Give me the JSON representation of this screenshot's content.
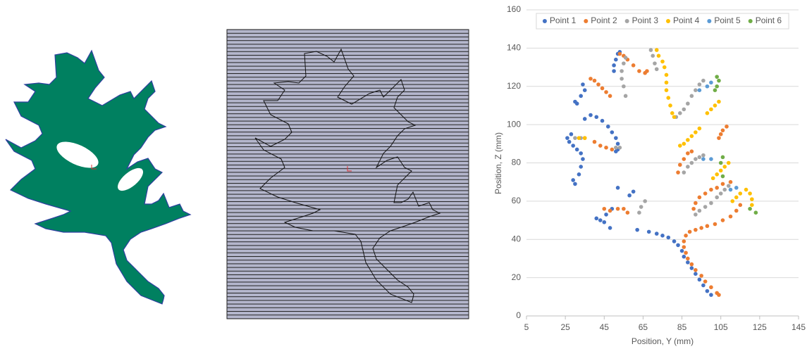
{
  "chart_data": {
    "type": "scatter",
    "xlabel": "Position, Y (mm)",
    "ylabel": "Position, Z (mm)",
    "xlim": [
      5,
      145
    ],
    "ylim": [
      0,
      160
    ],
    "xticks": [
      5,
      25,
      45,
      65,
      85,
      105,
      125,
      145
    ],
    "yticks": [
      0,
      20,
      40,
      60,
      80,
      100,
      120,
      140,
      160
    ],
    "grid": true,
    "legend": "top",
    "series": [
      {
        "name": "Point 1",
        "color": "#4472c4",
        "x": [
          100,
          98,
          96,
          94,
          92,
          90,
          88,
          86,
          85,
          83,
          81,
          78,
          75,
          72,
          68,
          62,
          48,
          45,
          43,
          41,
          46,
          49,
          52,
          58,
          60,
          30,
          29,
          32,
          33,
          34,
          33,
          31,
          29,
          27,
          26,
          28,
          35,
          38,
          41,
          44,
          47,
          49,
          51,
          52,
          52,
          51,
          30,
          31,
          33,
          35,
          34,
          50,
          50,
          51,
          52,
          53
        ],
        "values": [
          11,
          13,
          16,
          19,
          22,
          25,
          28,
          31,
          34,
          37,
          39,
          41,
          42,
          43,
          44,
          45,
          46,
          49,
          50,
          51,
          53,
          56,
          67,
          63,
          65,
          69,
          71,
          74,
          78,
          82,
          85,
          87,
          89,
          91,
          93,
          95,
          103,
          105,
          104,
          102,
          99,
          96,
          93,
          90,
          87,
          86,
          112,
          111,
          115,
          118,
          121,
          128,
          131,
          134,
          137,
          138
        ]
      },
      {
        "name": "Point 2",
        "color": "#ed7d31",
        "x": [
          104,
          103,
          100,
          97,
          95,
          92,
          90,
          88,
          87,
          86,
          86,
          87,
          89,
          92,
          95,
          98,
          102,
          106,
          110,
          113,
          115,
          91,
          92,
          94,
          97,
          100,
          103,
          106,
          110,
          83,
          84,
          86,
          88,
          90,
          104,
          105,
          106,
          108,
          35,
          40,
          43,
          46,
          49,
          45,
          48,
          52,
          55,
          57,
          38,
          40,
          42,
          44,
          46,
          48,
          53,
          55,
          57,
          60,
          63,
          66,
          67
        ],
        "values": [
          11,
          12,
          15,
          18,
          21,
          24,
          27,
          30,
          33,
          36,
          39,
          42,
          44,
          45,
          46,
          47,
          48,
          50,
          52,
          55,
          58,
          56,
          59,
          62,
          64,
          66,
          67,
          69,
          70,
          75,
          79,
          82,
          85,
          86,
          93,
          95,
          97,
          99,
          93,
          91,
          89,
          88,
          87,
          56,
          55,
          56,
          56,
          54,
          124,
          123,
          121,
          119,
          117,
          115,
          137,
          136,
          134,
          131,
          128,
          127,
          128
        ]
      },
      {
        "name": "Point 3",
        "color": "#a5a5a5",
        "x": [
          30,
          33,
          51,
          53,
          56,
          55,
          54,
          54,
          55,
          56,
          69,
          70,
          71,
          72,
          82,
          84,
          86,
          88,
          90,
          92,
          94,
          96,
          86,
          88,
          90,
          92,
          94,
          96,
          92,
          94,
          97,
          100,
          103,
          105,
          107,
          109,
          63,
          64,
          66
        ],
        "values": [
          93,
          93,
          88,
          88,
          115,
          120,
          124,
          128,
          132,
          135,
          139,
          136,
          132,
          129,
          104,
          106,
          108,
          111,
          115,
          118,
          121,
          123,
          75,
          78,
          80,
          82,
          83,
          84,
          53,
          55,
          57,
          59,
          62,
          64,
          66,
          68,
          54,
          57,
          60
        ]
      },
      {
        "name": "Point 4",
        "color": "#ffc000",
        "x": [
          32,
          35,
          72,
          73,
          75,
          76,
          77,
          77,
          77,
          78,
          79,
          80,
          81,
          84,
          86,
          88,
          90,
          92,
          94,
          98,
          100,
          102,
          104,
          101,
          103,
          105,
          107,
          109,
          111,
          113,
          115,
          118,
          120,
          121,
          121
        ],
        "values": [
          93,
          93,
          139,
          136,
          133,
          130,
          126,
          122,
          118,
          114,
          110,
          106,
          104,
          89,
          90,
          92,
          94,
          96,
          98,
          106,
          108,
          110,
          112,
          72,
          74,
          76,
          78,
          80,
          60,
          62,
          64,
          66,
          64,
          61,
          58
        ]
      },
      {
        "name": "Point 5",
        "color": "#5b9bd5",
        "x": [
          94,
          98,
          100,
          96,
          100,
          110,
          113
        ],
        "values": [
          118,
          120,
          122,
          82,
          82,
          66,
          67
        ]
      },
      {
        "name": "Point 6",
        "color": "#70ad47",
        "x": [
          103,
          104,
          103,
          102,
          106,
          105,
          106,
          120,
          123
        ],
        "values": [
          125,
          123,
          120,
          118,
          83,
          80,
          73,
          56,
          54
        ]
      }
    ]
  }
}
